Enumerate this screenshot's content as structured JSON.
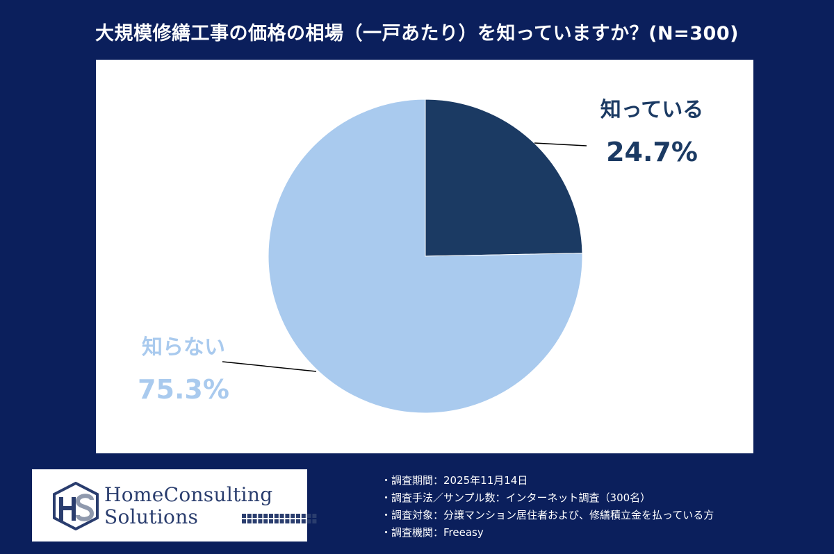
{
  "header": {
    "title": "大規模修繕工事の価格の相場（一戸あたり）を知っていますか？(N=300)"
  },
  "chart_data": {
    "type": "pie",
    "title": "大規模修繕工事の価格の相場（一戸あたり）を知っていますか？(N=300)",
    "slices": [
      {
        "label": "知っている",
        "value": 24.7,
        "value_label": "24.7%",
        "color": "#1b3a63",
        "text_color": "#1b3a63"
      },
      {
        "label": "知らない",
        "value": 75.3,
        "value_label": "75.3%",
        "color": "#a9caee",
        "text_color": "#a9caee"
      }
    ],
    "start_angle": "12 o'clock",
    "direction": "clockwise",
    "legend": "none"
  },
  "logo": {
    "line1": "HomeConsulting",
    "line2": "Solutions",
    "primary_color": "#2a3d6e"
  },
  "notes": [
    "・調査期間：2025年11月14日",
    "・調査手法／サンプル数：インターネット調査（300名）",
    "・調査対象：分譲マンション居住者および、修繕積立金を払っている方",
    "・調査機関：Freeasy"
  ]
}
